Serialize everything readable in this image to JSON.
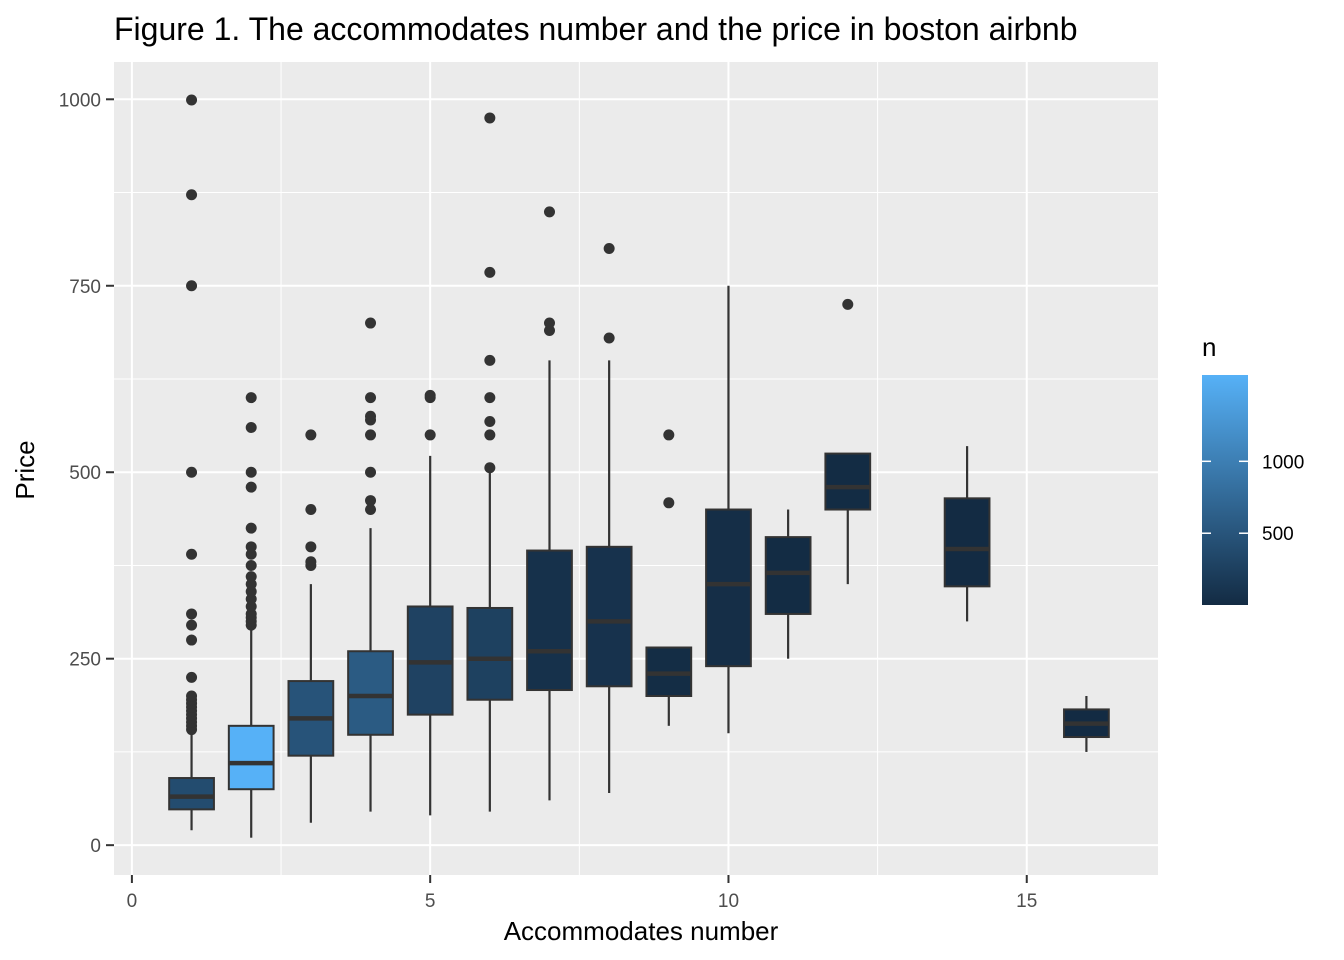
{
  "chart_data": {
    "type": "boxplot",
    "title": "Figure 1. The accommodates number and the price in boston airbnb",
    "xlabel": "Accommodates number",
    "ylabel": "Price",
    "xlim": [
      -0.3,
      17.2
    ],
    "ylim": [
      -40,
      1050
    ],
    "x_ticks": [
      0,
      5,
      10,
      15
    ],
    "y_ticks": [
      0,
      250,
      500,
      750,
      1000
    ],
    "grid": true,
    "legend": {
      "title": "n",
      "position": "right",
      "type": "colorbar",
      "range": [
        1,
        1600
      ],
      "ticks": [
        500,
        1000
      ],
      "color_low": "#132b43",
      "color_high": "#56b1f7"
    },
    "boxes": [
      {
        "x": 1,
        "n": 390,
        "whisker_low": 20,
        "q1": 48,
        "median": 65,
        "q3": 90,
        "whisker_high": 150,
        "outliers": [
          155,
          160,
          165,
          170,
          175,
          180,
          185,
          190,
          195,
          200,
          225,
          275,
          295,
          310,
          390,
          500,
          750,
          872,
          999
        ]
      },
      {
        "x": 2,
        "n": 1600,
        "whisker_low": 10,
        "q1": 75,
        "median": 110,
        "q3": 160,
        "whisker_high": 290,
        "outliers": [
          295,
          300,
          305,
          310,
          320,
          330,
          340,
          350,
          360,
          375,
          390,
          400,
          425,
          480,
          500,
          560,
          600
        ]
      },
      {
        "x": 3,
        "n": 480,
        "whisker_low": 30,
        "q1": 120,
        "median": 170,
        "q3": 220,
        "whisker_high": 350,
        "outliers": [
          375,
          380,
          400,
          450,
          550
        ]
      },
      {
        "x": 4,
        "n": 570,
        "whisker_low": 45,
        "q1": 148,
        "median": 200,
        "q3": 260,
        "whisker_high": 425,
        "outliers": [
          450,
          462,
          500,
          550,
          570,
          575,
          600,
          700
        ]
      },
      {
        "x": 5,
        "n": 280,
        "whisker_low": 40,
        "q1": 175,
        "median": 245,
        "q3": 320,
        "whisker_high": 522,
        "outliers": [
          550,
          600,
          603
        ]
      },
      {
        "x": 6,
        "n": 260,
        "whisker_low": 45,
        "q1": 195,
        "median": 250,
        "q3": 318,
        "whisker_high": 500,
        "outliers": [
          506,
          550,
          568,
          600,
          650,
          768,
          975
        ]
      },
      {
        "x": 7,
        "n": 70,
        "whisker_low": 60,
        "q1": 208,
        "median": 260,
        "q3": 395,
        "whisker_high": 650,
        "outliers": [
          690,
          700,
          849
        ]
      },
      {
        "x": 8,
        "n": 90,
        "whisker_low": 70,
        "q1": 213,
        "median": 300,
        "q3": 400,
        "whisker_high": 650,
        "outliers": [
          680,
          800
        ]
      },
      {
        "x": 9,
        "n": 20,
        "whisker_low": 160,
        "q1": 200,
        "median": 230,
        "q3": 265,
        "whisker_high": 265,
        "outliers": [
          459,
          550
        ]
      },
      {
        "x": 10,
        "n": 40,
        "whisker_low": 150,
        "q1": 240,
        "median": 350,
        "q3": 450,
        "whisker_high": 750,
        "outliers": []
      },
      {
        "x": 11,
        "n": 10,
        "whisker_low": 250,
        "q1": 310,
        "median": 365,
        "q3": 413,
        "whisker_high": 450,
        "outliers": []
      },
      {
        "x": 12,
        "n": 8,
        "whisker_low": 350,
        "q1": 450,
        "median": 480,
        "q3": 525,
        "whisker_high": 525,
        "outliers": [
          725
        ]
      },
      {
        "x": 14,
        "n": 5,
        "whisker_low": 300,
        "q1": 347,
        "median": 397,
        "q3": 465,
        "whisker_high": 535,
        "outliers": []
      },
      {
        "x": 16,
        "n": 3,
        "whisker_low": 125,
        "q1": 145,
        "median": 163,
        "q3": 182,
        "whisker_high": 200,
        "outliers": []
      }
    ]
  }
}
